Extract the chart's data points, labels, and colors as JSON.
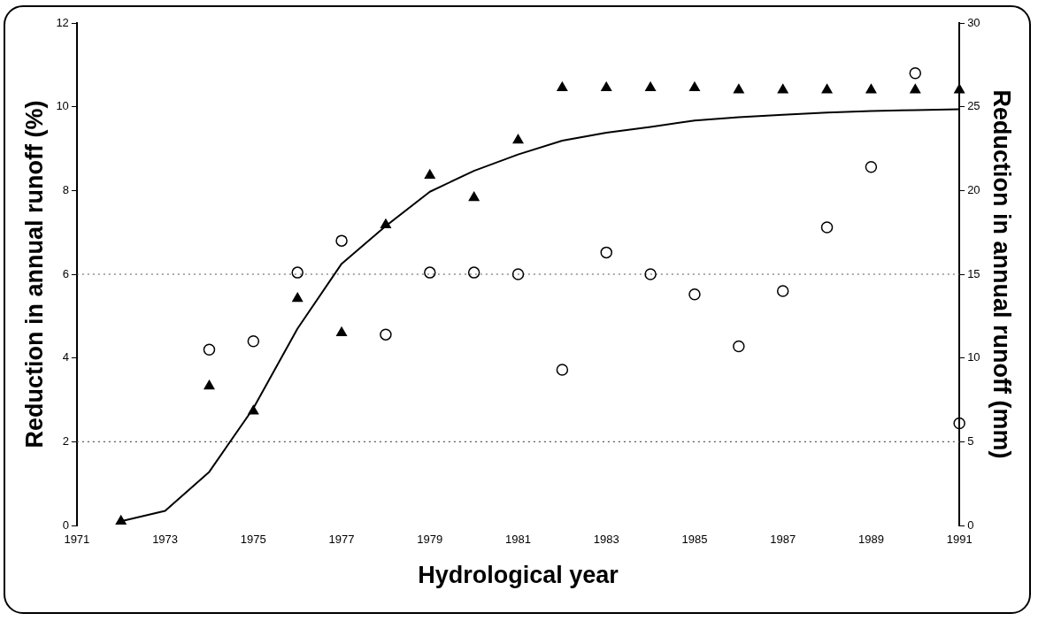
{
  "chart_data": {
    "type": "scatter",
    "xlabel": "Hydrological year",
    "ylabel": "Reduction in annual runoff (%)",
    "y2label": "Reduction in annual runoff (mm)",
    "x": [
      1972,
      1973,
      1974,
      1975,
      1976,
      1977,
      1978,
      1979,
      1980,
      1981,
      1982,
      1983,
      1984,
      1985,
      1986,
      1987,
      1988,
      1989,
      1990,
      1991
    ],
    "series": [
      {
        "type": "scatter",
        "marker": "triangle",
        "color": "#000000",
        "values": [
          0.1,
          null,
          3.33,
          2.73,
          5.42,
          4.6,
          7.18,
          8.36,
          7.83,
          9.2,
          10.45,
          10.45,
          10.45,
          10.45,
          10.4,
          10.4,
          10.4,
          10.4,
          10.4,
          10.4
        ]
      },
      {
        "type": "scatter",
        "marker": "circle",
        "color": "#000000",
        "axis": "y2",
        "values": [
          null,
          null,
          10.5,
          11.0,
          15.1,
          17.0,
          11.4,
          15.1,
          15.1,
          15.0,
          9.3,
          16.3,
          15.0,
          13.8,
          10.7,
          14.0,
          17.8,
          21.4,
          27.0,
          6.1
        ]
      },
      {
        "type": "line",
        "marker": "none",
        "line_style": "solid",
        "color": "#000000",
        "values": [
          0.1,
          0.35,
          1.28,
          2.8,
          4.7,
          6.25,
          7.15,
          7.97,
          8.47,
          8.86,
          9.19,
          9.38,
          9.52,
          9.67,
          9.75,
          9.81,
          9.86,
          9.9,
          9.92,
          9.94
        ]
      }
    ],
    "xlim": [
      1971,
      1991
    ],
    "xticks": [
      1971,
      1973,
      1975,
      1977,
      1979,
      1981,
      1983,
      1985,
      1987,
      1989,
      1991
    ],
    "ylim": [
      0,
      12
    ],
    "yticks": [
      0,
      2,
      4,
      6,
      8,
      10,
      12
    ],
    "y2lim": [
      0,
      30
    ],
    "y2ticks": [
      0,
      5,
      10,
      15,
      20,
      25,
      30
    ],
    "ref_lines": [
      {
        "axis": "y",
        "value": 6,
        "color": "#555555",
        "line_style": "dotted"
      },
      {
        "axis": "y",
        "value": 2,
        "color": "#555555",
        "line_style": "dotted"
      }
    ],
    "grid": false,
    "legend": false
  }
}
